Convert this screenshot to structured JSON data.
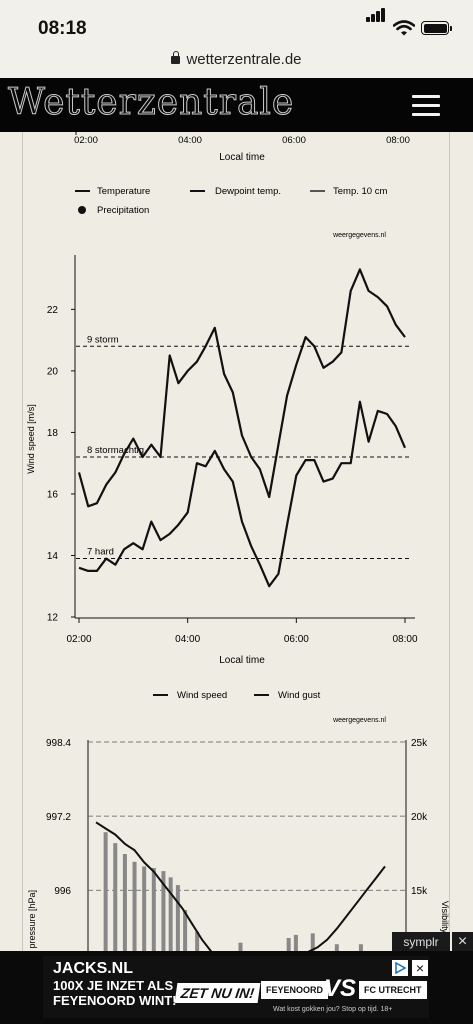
{
  "statusbar": {
    "time": "08:18"
  },
  "browser": {
    "url": "wetterzentrale.de"
  },
  "site": {
    "logo": "Wetterzentrale"
  },
  "top_axis": {
    "ticks": [
      "02:00",
      "04:00",
      "06:00",
      "08:00"
    ],
    "label": "Local time"
  },
  "legend1": {
    "items": [
      "Temperature",
      "Dewpoint temp.",
      "Temp. 10 cm",
      "Precipitation"
    ],
    "source": "weergegevens.nl"
  },
  "chart_data": [
    {
      "type": "line",
      "ylabel": "Wind speed [m/s]",
      "xlabel": "Local time",
      "x_ticks": [
        "02:00",
        "04:00",
        "06:00",
        "08:00"
      ],
      "y_ticks": [
        12,
        14,
        16,
        18,
        20,
        22
      ],
      "ylim": [
        12,
        23.8
      ],
      "xlim": [
        2.0,
        8.0
      ],
      "thresholds": [
        {
          "label": "9 storm",
          "value": 20.8
        },
        {
          "label": "8 stormachtig",
          "value": 17.2
        },
        {
          "label": "7 hard",
          "value": 13.9
        }
      ],
      "legend": [
        "Wind speed",
        "Wind gust"
      ],
      "source": "weergegevens.nl",
      "series": [
        {
          "name": "Wind gust",
          "x": [
            2.0,
            2.17,
            2.33,
            2.5,
            2.67,
            2.83,
            3.0,
            3.17,
            3.33,
            3.5,
            3.67,
            3.83,
            4.0,
            4.17,
            4.33,
            4.5,
            4.67,
            4.83,
            5.0,
            5.17,
            5.33,
            5.5,
            5.67,
            5.83,
            6.0,
            6.17,
            6.33,
            6.5,
            6.67,
            6.83,
            7.0,
            7.17,
            7.33,
            7.5,
            7.67,
            7.83,
            8.0
          ],
          "values": [
            16.7,
            15.6,
            15.7,
            16.3,
            16.7,
            17.3,
            17.8,
            17.2,
            17.6,
            17.2,
            20.5,
            19.6,
            20.0,
            20.3,
            20.8,
            21.4,
            19.9,
            19.3,
            17.9,
            17.2,
            16.8,
            15.9,
            17.6,
            19.2,
            20.2,
            21.1,
            20.8,
            20.1,
            20.3,
            20.6,
            22.6,
            23.3,
            22.6,
            22.4,
            22.1,
            21.5,
            21.1
          ]
        },
        {
          "name": "Wind speed",
          "x": [
            2.0,
            2.17,
            2.33,
            2.5,
            2.67,
            2.83,
            3.0,
            3.17,
            3.33,
            3.5,
            3.67,
            3.83,
            4.0,
            4.17,
            4.33,
            4.5,
            4.67,
            4.83,
            5.0,
            5.17,
            5.33,
            5.5,
            5.67,
            5.83,
            6.0,
            6.17,
            6.33,
            6.5,
            6.67,
            6.83,
            7.0,
            7.17,
            7.33,
            7.5,
            7.67,
            7.83,
            8.0
          ],
          "values": [
            13.6,
            13.5,
            13.5,
            13.9,
            13.7,
            14.2,
            14.4,
            14.2,
            15.1,
            14.5,
            14.7,
            15.0,
            15.4,
            17.0,
            16.9,
            17.4,
            16.8,
            16.4,
            15.1,
            14.3,
            13.7,
            13.0,
            13.4,
            15.0,
            16.6,
            17.1,
            17.1,
            16.4,
            16.5,
            17.0,
            17.0,
            19.0,
            17.7,
            18.7,
            18.6,
            18.2,
            17.5
          ]
        }
      ]
    },
    {
      "type": "bar",
      "ylabel": "r pressure [hPa]",
      "y_ticks": [
        "998.4",
        "997.2",
        "996"
      ],
      "y2label": "Visibility",
      "y2_ticks": [
        "25k",
        "20k",
        "15k"
      ],
      "ylim": [
        995.0,
        998.4
      ],
      "y2lim": [
        11.5,
        25.0
      ],
      "x_start": 2.0,
      "x_end": 8.0,
      "series": [
        {
          "name": "pressure",
          "x": [
            2.0,
            2.2,
            2.4,
            2.6,
            2.8,
            3.0,
            3.2,
            3.4,
            3.6,
            3.8,
            4.0,
            4.2,
            4.4
          ],
          "values": [
            997.1,
            997.0,
            996.9,
            996.75,
            996.65,
            996.45,
            996.3,
            996.1,
            995.9,
            995.7,
            995.45,
            995.2,
            995.0
          ]
        },
        {
          "name": "visibility",
          "x": [
            2.2,
            2.4,
            2.6,
            2.8,
            3.0,
            3.2,
            3.4,
            3.55,
            3.7,
            3.85,
            4.1,
            5.0,
            6.0,
            6.15,
            6.5,
            7.0,
            7.5
          ],
          "values": [
            19.2,
            18.5,
            17.8,
            17.3,
            17.0,
            16.9,
            16.7,
            16.3,
            15.8,
            14.2,
            12.8,
            12.1,
            12.4,
            12.6,
            12.7,
            12.0,
            12.0
          ]
        },
        {
          "name": "visibility-line",
          "x": [
            6.4,
            6.6,
            6.8,
            7.0,
            7.2,
            7.4,
            7.6,
            7.8,
            8.0
          ],
          "values": [
            11.5,
            11.8,
            12.3,
            13.0,
            13.8,
            14.6,
            15.4,
            16.2,
            17.0
          ]
        }
      ]
    }
  ],
  "ad": {
    "brand": "JACKS.NL",
    "headline_1": "100X JE INZET ALS",
    "headline_2": "FEYENOORD WINT!",
    "cta": "ZET NU IN!",
    "team_home": "FEYENOORD",
    "team_away": "FC UTRECHT",
    "vs": "VS",
    "disclaimer": "Wat kost gokken jou? Stop op tijd. 18+",
    "close": "×",
    "network": "symplr",
    "network_close": "×"
  }
}
